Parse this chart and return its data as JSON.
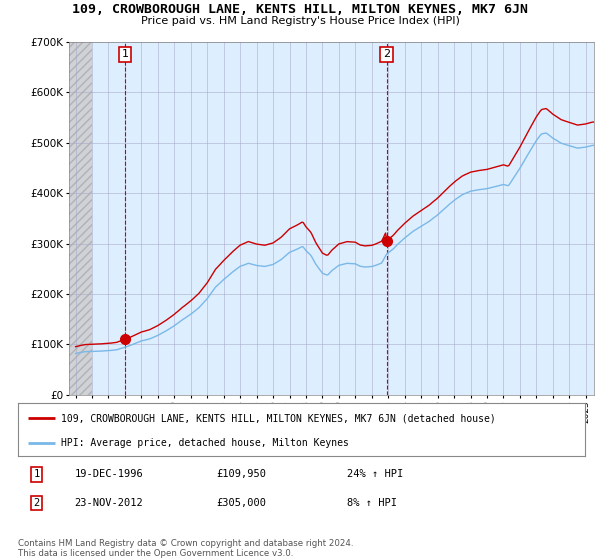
{
  "title": "109, CROWBOROUGH LANE, KENTS HILL, MILTON KEYNES, MK7 6JN",
  "subtitle": "Price paid vs. HM Land Registry's House Price Index (HPI)",
  "ylim": [
    0,
    700000
  ],
  "yticks": [
    0,
    100000,
    200000,
    300000,
    400000,
    500000,
    600000,
    700000
  ],
  "ytick_labels": [
    "£0",
    "£100K",
    "£200K",
    "£300K",
    "£400K",
    "£500K",
    "£600K",
    "£700K"
  ],
  "sale1_date": 1997.0,
  "sale1_price": 109950,
  "sale1_label": "1",
  "sale2_date": 2012.9,
  "sale2_price": 305000,
  "sale2_label": "2",
  "hpi_line_color": "#7ab8e8",
  "price_line_color": "#cc0000",
  "marker_color": "#cc0000",
  "sale_marker_size": 7,
  "legend_label_price": "109, CROWBOROUGH LANE, KENTS HILL, MILTON KEYNES, MK7 6JN (detached house)",
  "legend_label_hpi": "HPI: Average price, detached house, Milton Keynes",
  "table_row1": [
    "1",
    "19-DEC-1996",
    "£109,950",
    "24% ↑ HPI"
  ],
  "table_row2": [
    "2",
    "23-NOV-2012",
    "£305,000",
    "8% ↑ HPI"
  ],
  "footnote": "Contains HM Land Registry data © Crown copyright and database right 2024.\nThis data is licensed under the Open Government Licence v3.0.",
  "chart_bg_color": "#ddeeff",
  "hatch_color": "#c8c8c8",
  "grid_color": "#aaaacc",
  "dashed_vline_color": "#cc0000",
  "background_color": "#ffffff",
  "pre1995_end": 1995.0,
  "xmin": 1993.6,
  "xmax": 2025.5
}
